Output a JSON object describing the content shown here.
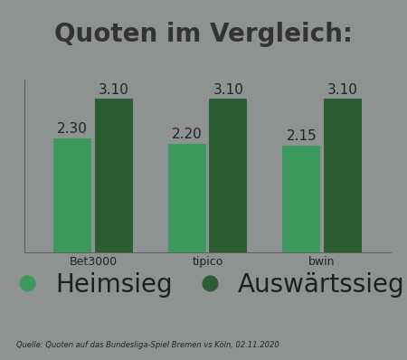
{
  "chart_data": {
    "type": "bar",
    "title": "Quoten im Vergleich:",
    "source": "Quelle: Quoten auf das Bundesliga-Spiel Bremen vs Köln, 02.11.2020",
    "categories": [
      "Bet3000",
      "tipico",
      "bwin"
    ],
    "series": [
      {
        "name": "Heimsieg",
        "color": "#3d9a5e",
        "values": [
          2.3,
          2.2,
          2.15
        ],
        "value_labels": [
          "2.30",
          "2.20",
          "2.15"
        ]
      },
      {
        "name": "Auswärtssieg",
        "color": "#2b5e32",
        "values": [
          3.1,
          3.1,
          3.1
        ],
        "value_labels": [
          "3.10",
          "3.10",
          "3.10"
        ]
      }
    ],
    "ylim": [
      0,
      3.5
    ],
    "yticks": [],
    "data_labels": true,
    "tick_labels": "x",
    "legend": "lower center",
    "grid": false
  }
}
